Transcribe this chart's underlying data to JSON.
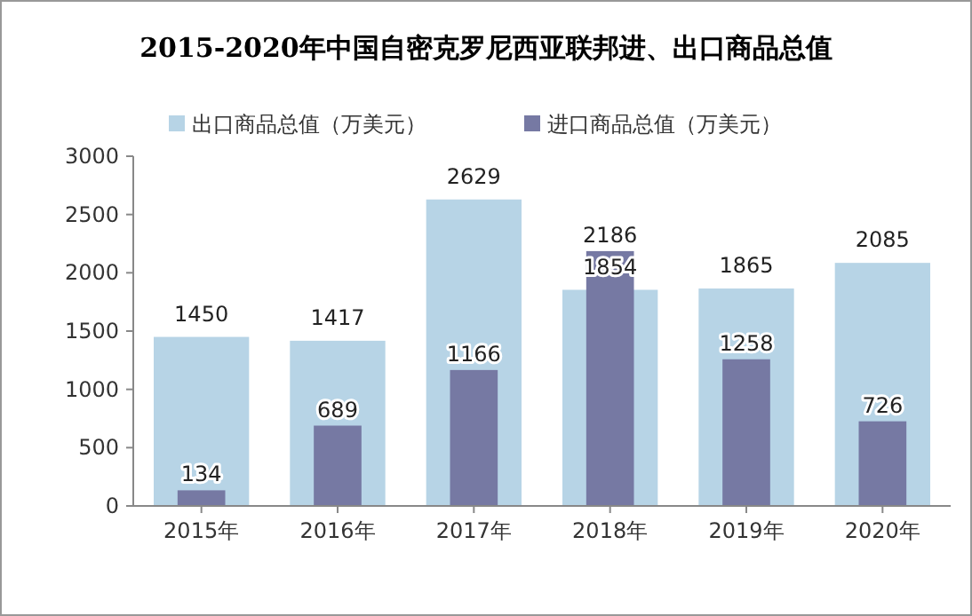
{
  "chart_data": {
    "type": "bar",
    "title": "2015-2020年中国自密克罗尼西亚联邦进、出口商品总值",
    "categories": [
      "2015年",
      "2016年",
      "2017年",
      "2018年",
      "2019年",
      "2020年"
    ],
    "series": [
      {
        "name": "出口商品总值（万美元）",
        "color": "#b7d4e6",
        "values": [
          1450,
          1417,
          2629,
          1854,
          1865,
          2085
        ]
      },
      {
        "name": "进口商品总值（万美元）",
        "color": "#7679a3",
        "values": [
          134,
          689,
          1166,
          2186,
          1258,
          726
        ]
      }
    ],
    "ylim": [
      0,
      3000
    ],
    "yticks": [
      0,
      500,
      1000,
      1500,
      2000,
      2500,
      3000
    ],
    "grid": false,
    "legend": "top",
    "data_labels": true
  }
}
